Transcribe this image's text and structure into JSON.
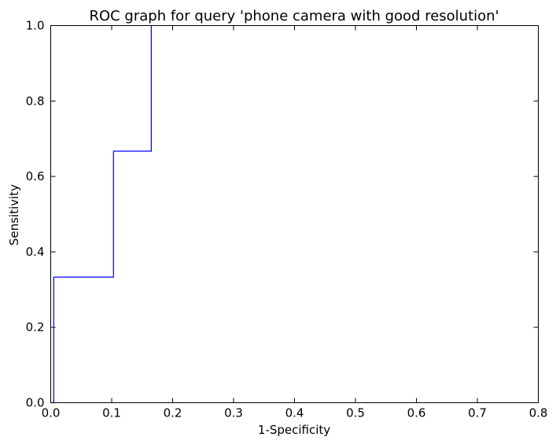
{
  "chart_data": {
    "type": "line",
    "title": "ROC graph for query 'phone camera with good resolution'",
    "xlabel": "1-Specificity",
    "ylabel": "Sensitivity",
    "xlim": [
      0.0,
      0.8
    ],
    "ylim": [
      0.0,
      1.0
    ],
    "x_ticks": [
      0.0,
      0.1,
      0.2,
      0.3,
      0.4,
      0.5,
      0.6,
      0.7,
      0.8
    ],
    "y_ticks": [
      0.0,
      0.2,
      0.4,
      0.6,
      0.8,
      1.0
    ],
    "x_tick_labels": [
      "0.0",
      "0.1",
      "0.2",
      "0.3",
      "0.4",
      "0.5",
      "0.6",
      "0.7",
      "0.8"
    ],
    "y_tick_labels": [
      "0.0",
      "0.2",
      "0.4",
      "0.6",
      "0.8",
      "1.0"
    ],
    "grid": false,
    "legend": "none",
    "series": [
      {
        "color": "#0000ff",
        "x": [
          0.0,
          0.005,
          0.005,
          0.103,
          0.103,
          0.165,
          0.165
        ],
        "y": [
          0.0,
          0.0,
          0.333,
          0.333,
          0.667,
          0.667,
          1.0
        ]
      }
    ]
  }
}
